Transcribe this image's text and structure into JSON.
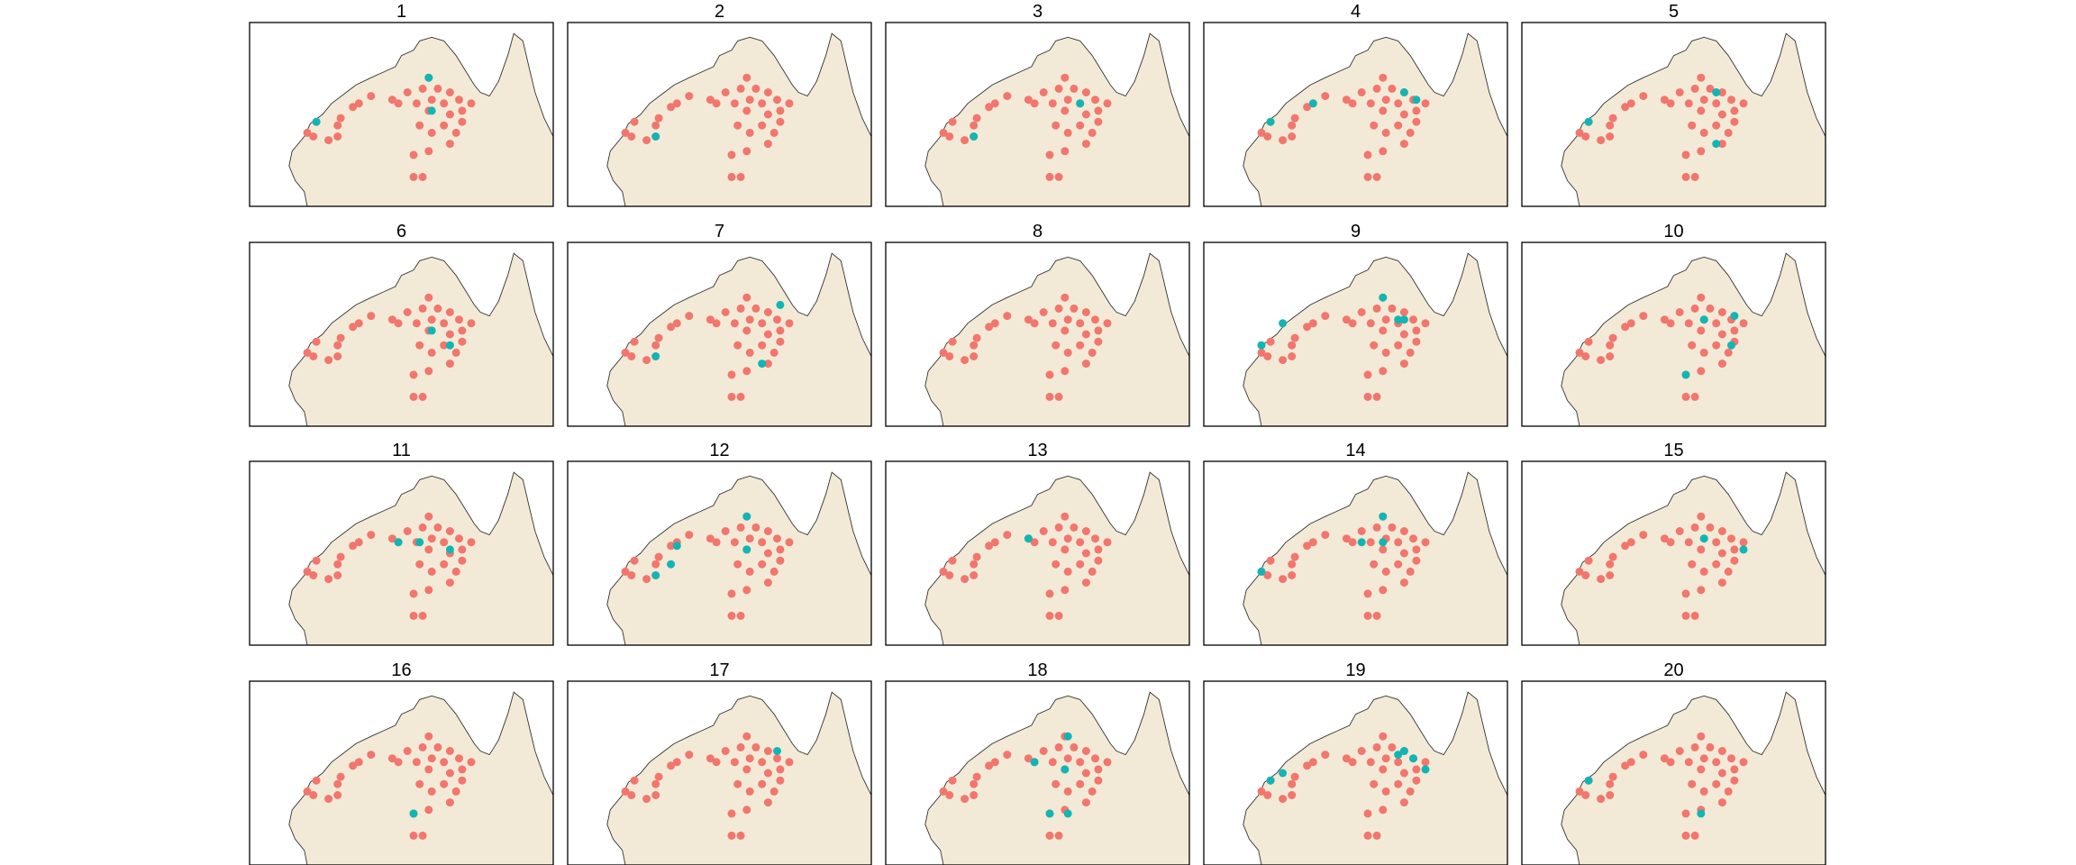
{
  "chart_data": {
    "type": "scatter",
    "panel_titles": [
      "1",
      "2",
      "3",
      "4",
      "5",
      "6",
      "7",
      "8",
      "9",
      "10",
      "11",
      "12",
      "13",
      "14",
      "15",
      "16",
      "17",
      "18",
      "19",
      "20"
    ],
    "colors": {
      "frame": "#000000",
      "land": "#f2ead6",
      "coastline": "#333333",
      "primary_points": "#f2766e",
      "highlight_points": "#12b5b5"
    },
    "series": [
      {
        "name": "",
        "color": "#f2766e",
        "values": "panel-frame fractions: x = 0 at left edge, 1 at right edge; y = 0 at top edge, 1 at bottom edge",
        "x": [
          0.22,
          0.19,
          0.26,
          0.3,
          0.34,
          0.36,
          0.4,
          0.47,
          0.52,
          0.49,
          0.55,
          0.57,
          0.59,
          0.59,
          0.56,
          0.6,
          0.62,
          0.64,
          0.66,
          0.69,
          0.66,
          0.64,
          0.7,
          0.73,
          0.7,
          0.68,
          0.66,
          0.6,
          0.59,
          0.57,
          0.54,
          0.54,
          0.29,
          0.29,
          0.21
        ],
        "y": [
          0.54,
          0.6,
          0.64,
          0.52,
          0.46,
          0.44,
          0.4,
          0.42,
          0.38,
          0.44,
          0.44,
          0.36,
          0.3,
          0.48,
          0.56,
          0.42,
          0.36,
          0.44,
          0.38,
          0.42,
          0.5,
          0.56,
          0.48,
          0.44,
          0.54,
          0.6,
          0.66,
          0.6,
          0.7,
          0.84,
          0.72,
          0.84,
          0.56,
          0.62,
          0.62
        ]
      }
    ],
    "highlights": [
      {
        "x": [
          0.22,
          0.6,
          0.59
        ],
        "y": [
          0.54,
          0.48,
          0.3
        ]
      },
      {
        "x": [
          0.29
        ],
        "y": [
          0.62
        ]
      },
      {
        "x": [
          0.29,
          0.64
        ],
        "y": [
          0.62,
          0.44
        ]
      },
      {
        "x": [
          0.22,
          0.36,
          0.7,
          0.66
        ],
        "y": [
          0.54,
          0.44,
          0.42,
          0.38
        ]
      },
      {
        "x": [
          0.22,
          0.64,
          0.64
        ],
        "y": [
          0.54,
          0.38,
          0.66
        ]
      },
      {
        "x": [
          0.6,
          0.66
        ],
        "y": [
          0.48,
          0.56
        ]
      },
      {
        "x": [
          0.29,
          0.7,
          0.64
        ],
        "y": [
          0.62,
          0.34,
          0.66
        ]
      },
      {
        "x": [],
        "y": []
      },
      {
        "x": [
          0.19,
          0.26,
          0.66,
          0.59,
          0.64
        ],
        "y": [
          0.56,
          0.44,
          0.42,
          0.3,
          0.42
        ]
      },
      {
        "x": [
          0.6,
          0.7,
          0.69,
          0.54
        ],
        "y": [
          0.42,
          0.4,
          0.56,
          0.72
        ]
      },
      {
        "x": [
          0.49,
          0.66,
          0.56
        ],
        "y": [
          0.44,
          0.48,
          0.44
        ]
      },
      {
        "x": [
          0.29,
          0.34,
          0.36,
          0.59,
          0.59
        ],
        "y": [
          0.62,
          0.56,
          0.46,
          0.3,
          0.48
        ]
      },
      {
        "x": [
          0.47
        ],
        "y": [
          0.42
        ]
      },
      {
        "x": [
          0.19,
          0.52,
          0.59,
          0.59
        ],
        "y": [
          0.6,
          0.44,
          0.44,
          0.3
        ]
      },
      {
        "x": [
          0.6,
          0.73
        ],
        "y": [
          0.42,
          0.48
        ]
      },
      {
        "x": [
          0.54
        ],
        "y": [
          0.72
        ]
      },
      {
        "x": [
          0.69
        ],
        "y": [
          0.38
        ]
      },
      {
        "x": [
          0.6,
          0.59,
          0.49,
          0.6,
          0.54
        ],
        "y": [
          0.3,
          0.48,
          0.44,
          0.72,
          0.72
        ]
      },
      {
        "x": [
          0.22,
          0.26,
          0.64,
          0.66,
          0.69,
          0.73
        ],
        "y": [
          0.54,
          0.5,
          0.4,
          0.38,
          0.42,
          0.48
        ]
      },
      {
        "x": [
          0.22,
          0.59
        ],
        "y": [
          0.54,
          0.72
        ]
      }
    ]
  }
}
